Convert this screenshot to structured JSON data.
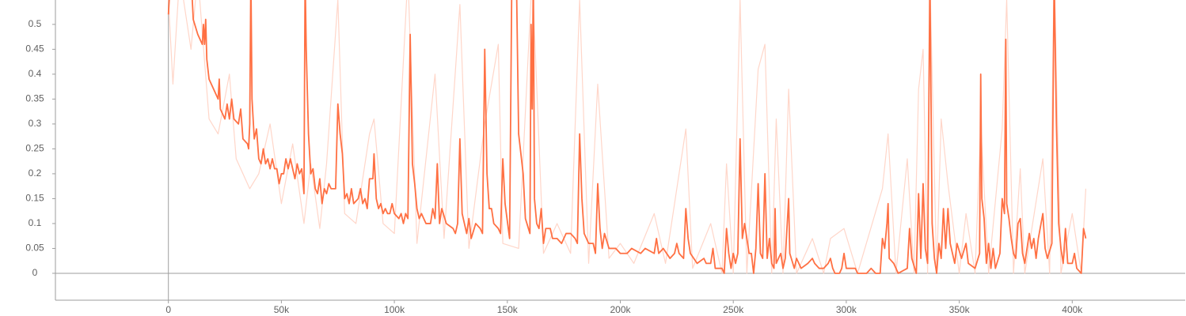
{
  "chart_data": {
    "type": "line",
    "xlim": [
      -50000,
      450000
    ],
    "ylim": [
      -0.054,
      0.549
    ],
    "xticks": [
      {
        "value": 0,
        "label": "0"
      },
      {
        "value": 50000,
        "label": "50k"
      },
      {
        "value": 100000,
        "label": "100k"
      },
      {
        "value": 150000,
        "label": "150k"
      },
      {
        "value": 200000,
        "label": "200k"
      },
      {
        "value": 250000,
        "label": "250k"
      },
      {
        "value": 300000,
        "label": "300k"
      },
      {
        "value": 350000,
        "label": "350k"
      },
      {
        "value": 400000,
        "label": "400k"
      }
    ],
    "yticks": [
      0,
      0.05,
      0.1,
      0.15,
      0.2,
      0.25,
      0.3,
      0.35,
      0.4,
      0.45,
      0.5
    ],
    "series": [
      {
        "color": "#ffccbc",
        "x": [
          0,
          2000,
          5000,
          10000,
          13000,
          18000,
          22000,
          27000,
          30000,
          36000,
          40000,
          45000,
          50000,
          55000,
          60000,
          63000,
          67000,
          70000,
          75000,
          78000,
          83000,
          89000,
          91000,
          95000,
          100000,
          106000,
          110000,
          118000,
          122000,
          129000,
          133000,
          140000,
          146000,
          148000,
          155000,
          161000,
          166000,
          172000,
          178000,
          182000,
          186000,
          190000,
          195000,
          200000,
          206000,
          215000,
          220000,
          229000,
          232000,
          240000,
          245000,
          247000,
          250000,
          253000,
          256000,
          261000,
          264000,
          267000,
          269000,
          272000,
          274500,
          278000,
          285000,
          290000,
          293000,
          299000,
          305000,
          316000,
          318500,
          322000,
          327000,
          330000,
          332000,
          334000,
          336000,
          337000,
          340000,
          342000,
          345000,
          350000,
          353000,
          357000,
          359500,
          363000,
          369000,
          371000,
          374000,
          377000,
          379000,
          387000,
          390000,
          392000,
          395000,
          400000,
          404000,
          406000
        ],
        "values": [
          0.55,
          0.38,
          0.6,
          0.45,
          0.6,
          0.31,
          0.28,
          0.4,
          0.23,
          0.17,
          0.2,
          0.3,
          0.14,
          0.26,
          0.1,
          0.22,
          0.09,
          0.22,
          0.55,
          0.12,
          0.1,
          0.28,
          0.31,
          0.1,
          0.08,
          0.6,
          0.06,
          0.4,
          0.07,
          0.54,
          0.05,
          0.3,
          0.46,
          0.06,
          0.05,
          0.6,
          0.04,
          0.1,
          0.04,
          0.55,
          0.02,
          0.38,
          0.03,
          0.06,
          0.02,
          0.12,
          0.02,
          0.29,
          0.01,
          0.1,
          0,
          0.22,
          0,
          0.55,
          0,
          0.41,
          0.46,
          0,
          0.31,
          0,
          0.37,
          0,
          0.07,
          0,
          0.07,
          0.09,
          0,
          0.17,
          0.28,
          0,
          0.23,
          0,
          0.37,
          0.45,
          0,
          0.6,
          0,
          0.31,
          0.18,
          0,
          0.12,
          0,
          0.3,
          0,
          0.29,
          0.55,
          0,
          0.21,
          0,
          0.23,
          0,
          0.6,
          0,
          0.12,
          0,
          0.17
        ]
      },
      {
        "color": "#ff7043",
        "x": [
          0,
          1000,
          10000,
          11000,
          13000,
          15000,
          15500,
          16000,
          16500,
          17000,
          18000,
          20000,
          22000,
          22500,
          23000,
          25000,
          26000,
          27000,
          28000,
          29000,
          31000,
          32000,
          33000,
          35000,
          35500,
          36000,
          36500,
          37000,
          38000,
          39000,
          40000,
          41000,
          42000,
          43000,
          44000,
          45000,
          46000,
          47000,
          48000,
          49000,
          50000,
          51000,
          52000,
          53000,
          54000,
          55000,
          56000,
          57000,
          58000,
          59000,
          60000,
          60500,
          61000,
          62000,
          63000,
          64000,
          65000,
          66000,
          67000,
          68000,
          69000,
          70000,
          71000,
          72000,
          74000,
          75000,
          76000,
          77000,
          78000,
          79000,
          80000,
          81000,
          82000,
          84000,
          85000,
          86000,
          87000,
          88000,
          89000,
          90500,
          91000,
          92000,
          93000,
          94000,
          95000,
          96000,
          97000,
          98000,
          99000,
          100000,
          102000,
          103000,
          104000,
          105000,
          106000,
          107000,
          108000,
          109000,
          110000,
          111000,
          112000,
          114000,
          116000,
          117000,
          118000,
          119000,
          120000,
          121000,
          123000,
          126000,
          127000,
          128000,
          129000,
          130000,
          132000,
          133000,
          134000,
          136000,
          138000,
          139000,
          140000,
          141000,
          142000,
          143000,
          144000,
          146000,
          147000,
          148000,
          149000,
          151000,
          152000,
          154000,
          155000,
          157000,
          158000,
          160000,
          160500,
          161000,
          161500,
          162000,
          163000,
          164000,
          165000,
          166000,
          167000,
          169000,
          170000,
          172000,
          174000,
          176000,
          178000,
          180000,
          181000,
          182000,
          183000,
          184000,
          186000,
          188000,
          189000,
          190000,
          191000,
          192000,
          193000,
          195000,
          198000,
          200000,
          203000,
          205000,
          209000,
          211000,
          215000,
          216000,
          217000,
          219000,
          222000,
          224000,
          225000,
          226000,
          228000,
          229000,
          230000,
          231000,
          234000,
          237000,
          238000,
          240000,
          241000,
          242000,
          245000,
          246000,
          247000,
          248000,
          249000,
          250000,
          251000,
          252000,
          253000,
          254000,
          255000,
          256000,
          257000,
          258000,
          259000,
          260000,
          261000,
          262000,
          263000,
          264000,
          265000,
          266000,
          267000,
          268000,
          268500,
          269000,
          271000,
          272000,
          273000,
          274500,
          275000,
          277000,
          278000,
          280000,
          283000,
          285000,
          286000,
          288000,
          290000,
          292000,
          293000,
          294000,
          295000,
          297000,
          298000,
          299000,
          300000,
          304000,
          305000,
          309000,
          311000,
          313000,
          315000,
          316000,
          317000,
          318000,
          318500,
          319000,
          321000,
          323000,
          327000,
          328000,
          329000,
          331000,
          332000,
          333000,
          334000,
          335000,
          336000,
          337000,
          338000,
          339000,
          340000,
          341000,
          342000,
          343000,
          344000,
          345000,
          346000,
          348000,
          349000,
          351000,
          353000,
          354000,
          357000,
          359000,
          359500,
          360000,
          361000,
          362000,
          363000,
          364000,
          365000,
          366000,
          368000,
          369000,
          370000,
          370600,
          371000,
          372000,
          373000,
          374000,
          375000,
          376000,
          377000,
          378000,
          379000,
          381000,
          382000,
          383000,
          384000,
          385000,
          387000,
          388000,
          389000,
          391000,
          392000,
          393000,
          394000,
          395000,
          396000,
          397000,
          398000,
          400000,
          401000,
          402000,
          404000,
          405000,
          406000
        ],
        "values": [
          0.52,
          0.6,
          0.6,
          0.51,
          0.48,
          0.46,
          0.5,
          0.46,
          0.51,
          0.43,
          0.39,
          0.37,
          0.35,
          0.39,
          0.33,
          0.31,
          0.34,
          0.31,
          0.35,
          0.31,
          0.3,
          0.33,
          0.27,
          0.26,
          0.25,
          0.3,
          0.6,
          0.35,
          0.27,
          0.29,
          0.23,
          0.22,
          0.25,
          0.22,
          0.23,
          0.21,
          0.23,
          0.21,
          0.21,
          0.18,
          0.2,
          0.2,
          0.23,
          0.21,
          0.23,
          0.21,
          0.19,
          0.22,
          0.2,
          0.21,
          0.16,
          0.6,
          0.45,
          0.28,
          0.2,
          0.21,
          0.17,
          0.16,
          0.19,
          0.14,
          0.17,
          0.16,
          0.18,
          0.17,
          0.17,
          0.34,
          0.28,
          0.24,
          0.15,
          0.16,
          0.14,
          0.17,
          0.14,
          0.15,
          0.17,
          0.14,
          0.15,
          0.13,
          0.19,
          0.19,
          0.24,
          0.15,
          0.13,
          0.14,
          0.12,
          0.13,
          0.12,
          0.12,
          0.14,
          0.12,
          0.11,
          0.12,
          0.1,
          0.12,
          0.11,
          0.48,
          0.22,
          0.18,
          0.13,
          0.11,
          0.12,
          0.1,
          0.1,
          0.13,
          0.11,
          0.22,
          0.1,
          0.13,
          0.1,
          0.09,
          0.08,
          0.1,
          0.27,
          0.12,
          0.08,
          0.11,
          0.07,
          0.1,
          0.09,
          0.08,
          0.45,
          0.2,
          0.13,
          0.13,
          0.1,
          0.09,
          0.08,
          0.23,
          0.14,
          0.07,
          0.6,
          0.6,
          0.28,
          0.2,
          0.11,
          0.08,
          0.5,
          0.33,
          0.6,
          0.15,
          0.1,
          0.09,
          0.13,
          0.06,
          0.09,
          0.09,
          0.07,
          0.07,
          0.06,
          0.08,
          0.08,
          0.07,
          0.06,
          0.28,
          0.15,
          0.08,
          0.06,
          0.06,
          0.04,
          0.18,
          0.09,
          0.05,
          0.08,
          0.05,
          0.05,
          0.04,
          0.04,
          0.05,
          0.04,
          0.05,
          0.04,
          0.07,
          0.04,
          0.05,
          0.03,
          0.04,
          0.06,
          0.04,
          0.03,
          0.13,
          0.07,
          0.04,
          0.02,
          0.03,
          0.02,
          0.02,
          0.05,
          0.01,
          0.01,
          0,
          0.09,
          0.04,
          0.01,
          0.04,
          0.02,
          0.04,
          0.27,
          0.07,
          0.1,
          0.07,
          0.04,
          0.04,
          0,
          0.05,
          0.18,
          0.04,
          0.03,
          0.2,
          0.03,
          0.07,
          0.02,
          0.01,
          0.13,
          0.02,
          0.04,
          0.01,
          0.03,
          0.15,
          0.04,
          0.01,
          0.03,
          0.01,
          0.02,
          0.03,
          0.02,
          0.01,
          0.01,
          0.02,
          0.03,
          0.01,
          0,
          0,
          0.01,
          0.04,
          0.01,
          0.01,
          0,
          0,
          0.01,
          0,
          0,
          0.07,
          0.05,
          0.1,
          0.14,
          0.03,
          0.02,
          0,
          0.01,
          0.09,
          0.03,
          0,
          0.16,
          0.03,
          0.18,
          0.05,
          0.02,
          0.6,
          0.1,
          0.03,
          0,
          0.06,
          0.03,
          0.13,
          0.05,
          0.13,
          0.06,
          0.02,
          0.06,
          0.03,
          0.06,
          0.02,
          0.01,
          0.04,
          0.4,
          0.15,
          0.11,
          0.02,
          0.06,
          0.01,
          0.05,
          0.01,
          0.04,
          0.15,
          0.12,
          0.47,
          0.14,
          0.11,
          0.07,
          0.04,
          0.03,
          0.1,
          0.11,
          0.04,
          0.02,
          0.08,
          0.05,
          0.07,
          0.03,
          0.07,
          0.12,
          0.05,
          0.03,
          0.06,
          0.6,
          0.3,
          0.1,
          0.05,
          0.02,
          0.09,
          0.02,
          0.02,
          0.04,
          0.01,
          0,
          0.09,
          0.07
        ]
      }
    ]
  }
}
